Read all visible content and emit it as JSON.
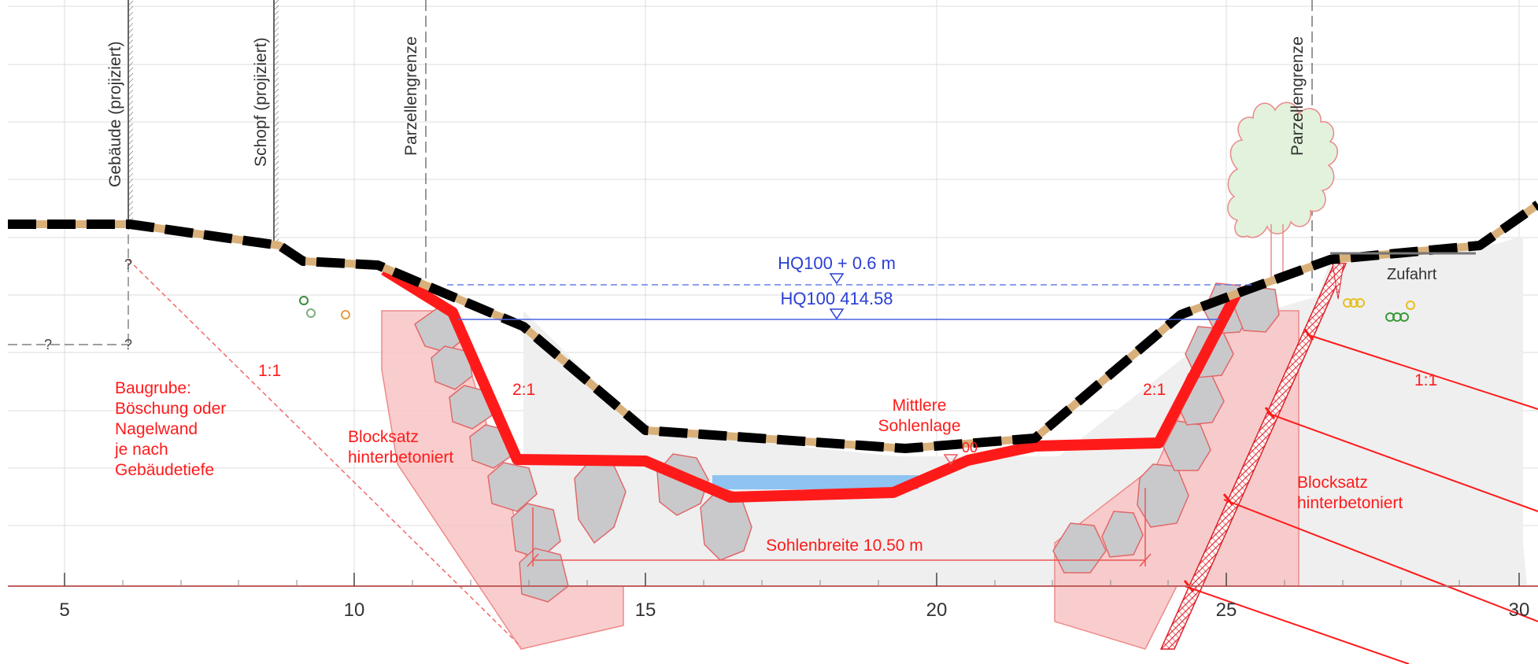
{
  "axis": {
    "ticks": [
      "5",
      "10",
      "15",
      "20",
      "25",
      "30"
    ]
  },
  "vertical_labels": {
    "gebaeude": "Gebäude (projiziert)",
    "schopf": "Schopf (projiziert)",
    "parzelle_left": "Parzellengrenze",
    "parzelle_right": "Parzellengrenze"
  },
  "water_levels": {
    "freeboard": "HQ100 + 0.6 m",
    "hq100": "HQ100 414.58"
  },
  "question_marks": [
    "?",
    "?",
    "?"
  ],
  "slopes": {
    "baugrube_slope": "1:1",
    "left_bank": "2:1",
    "right_bank": "2:1",
    "right_excavation": "1:1"
  },
  "notes": {
    "baugrube": [
      "Baugrube:",
      "Böschung oder",
      "Nagelwand",
      "je nach",
      "Gebäudetiefe"
    ],
    "blocksatz_left": [
      "Blocksatz",
      "hinterbetoniert"
    ],
    "mittlere": [
      "Mittlere",
      "Sohlenlage"
    ],
    "mittlere_partial": "00",
    "blocksatz_right": [
      "Blocksatz",
      "hinterbetoniert"
    ],
    "sohlenbreite": "Sohlenbreite 10.50 m",
    "zufahrt": "Zufahrt"
  },
  "colors": {
    "design_profile": "#ff1a1a",
    "terrain": "#000000",
    "water_lines": "#2a3fd6",
    "blocks_fill": "#c9c9cc",
    "block_zone": "#f8c4c4",
    "tree": "#e2f2dc",
    "water": "#8ec3f2"
  }
}
